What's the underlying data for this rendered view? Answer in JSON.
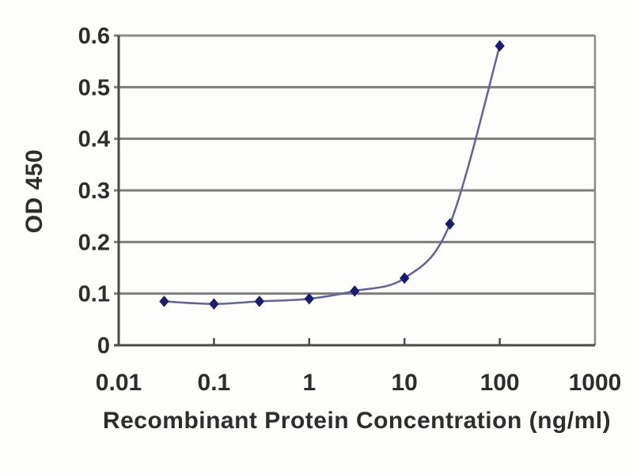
{
  "figure": {
    "xlabel": "Recombinant Protein Concentration (ng/ml)",
    "ylabel": "OD 450"
  },
  "chart_data": {
    "type": "line",
    "title": "",
    "xlabel": "Recombinant Protein Concentration (ng/ml)",
    "ylabel": "OD 450",
    "x_scale": "log",
    "y_scale": "linear",
    "xlim": [
      0.01,
      1000
    ],
    "ylim": [
      0,
      0.6
    ],
    "series": [
      {
        "name": "OD 450 vs recombinant protein concentration",
        "x": [
          0.03,
          0.1,
          0.3,
          1,
          3,
          10,
          30,
          100
        ],
        "y": [
          0.085,
          0.08,
          0.085,
          0.09,
          0.105,
          0.13,
          0.235,
          0.58
        ]
      }
    ],
    "x_tick_values": [
      0.01,
      0.1,
      1,
      10,
      100,
      1000
    ],
    "x_tick_labels": [
      "0.01",
      "0.1",
      "1",
      "10",
      "100",
      "1000"
    ],
    "y_tick_values": [
      0,
      0.1,
      0.2,
      0.3,
      0.4,
      0.5,
      0.6
    ],
    "y_tick_labels": [
      "0",
      "0.1",
      "0.2",
      "0.3",
      "0.4",
      "0.5",
      "0.6"
    ],
    "grid": "horizontal-only",
    "legend_position": "none",
    "marker": "diamond",
    "line_style": "smooth",
    "colors": {
      "line": "#61619c",
      "marker": "#1c1c70",
      "grid": "#7d7d7d",
      "axis": "#4a4a4a",
      "frame": "#8a8a8a",
      "text": "#2d2d2d",
      "background": "#fdfdfc"
    }
  }
}
